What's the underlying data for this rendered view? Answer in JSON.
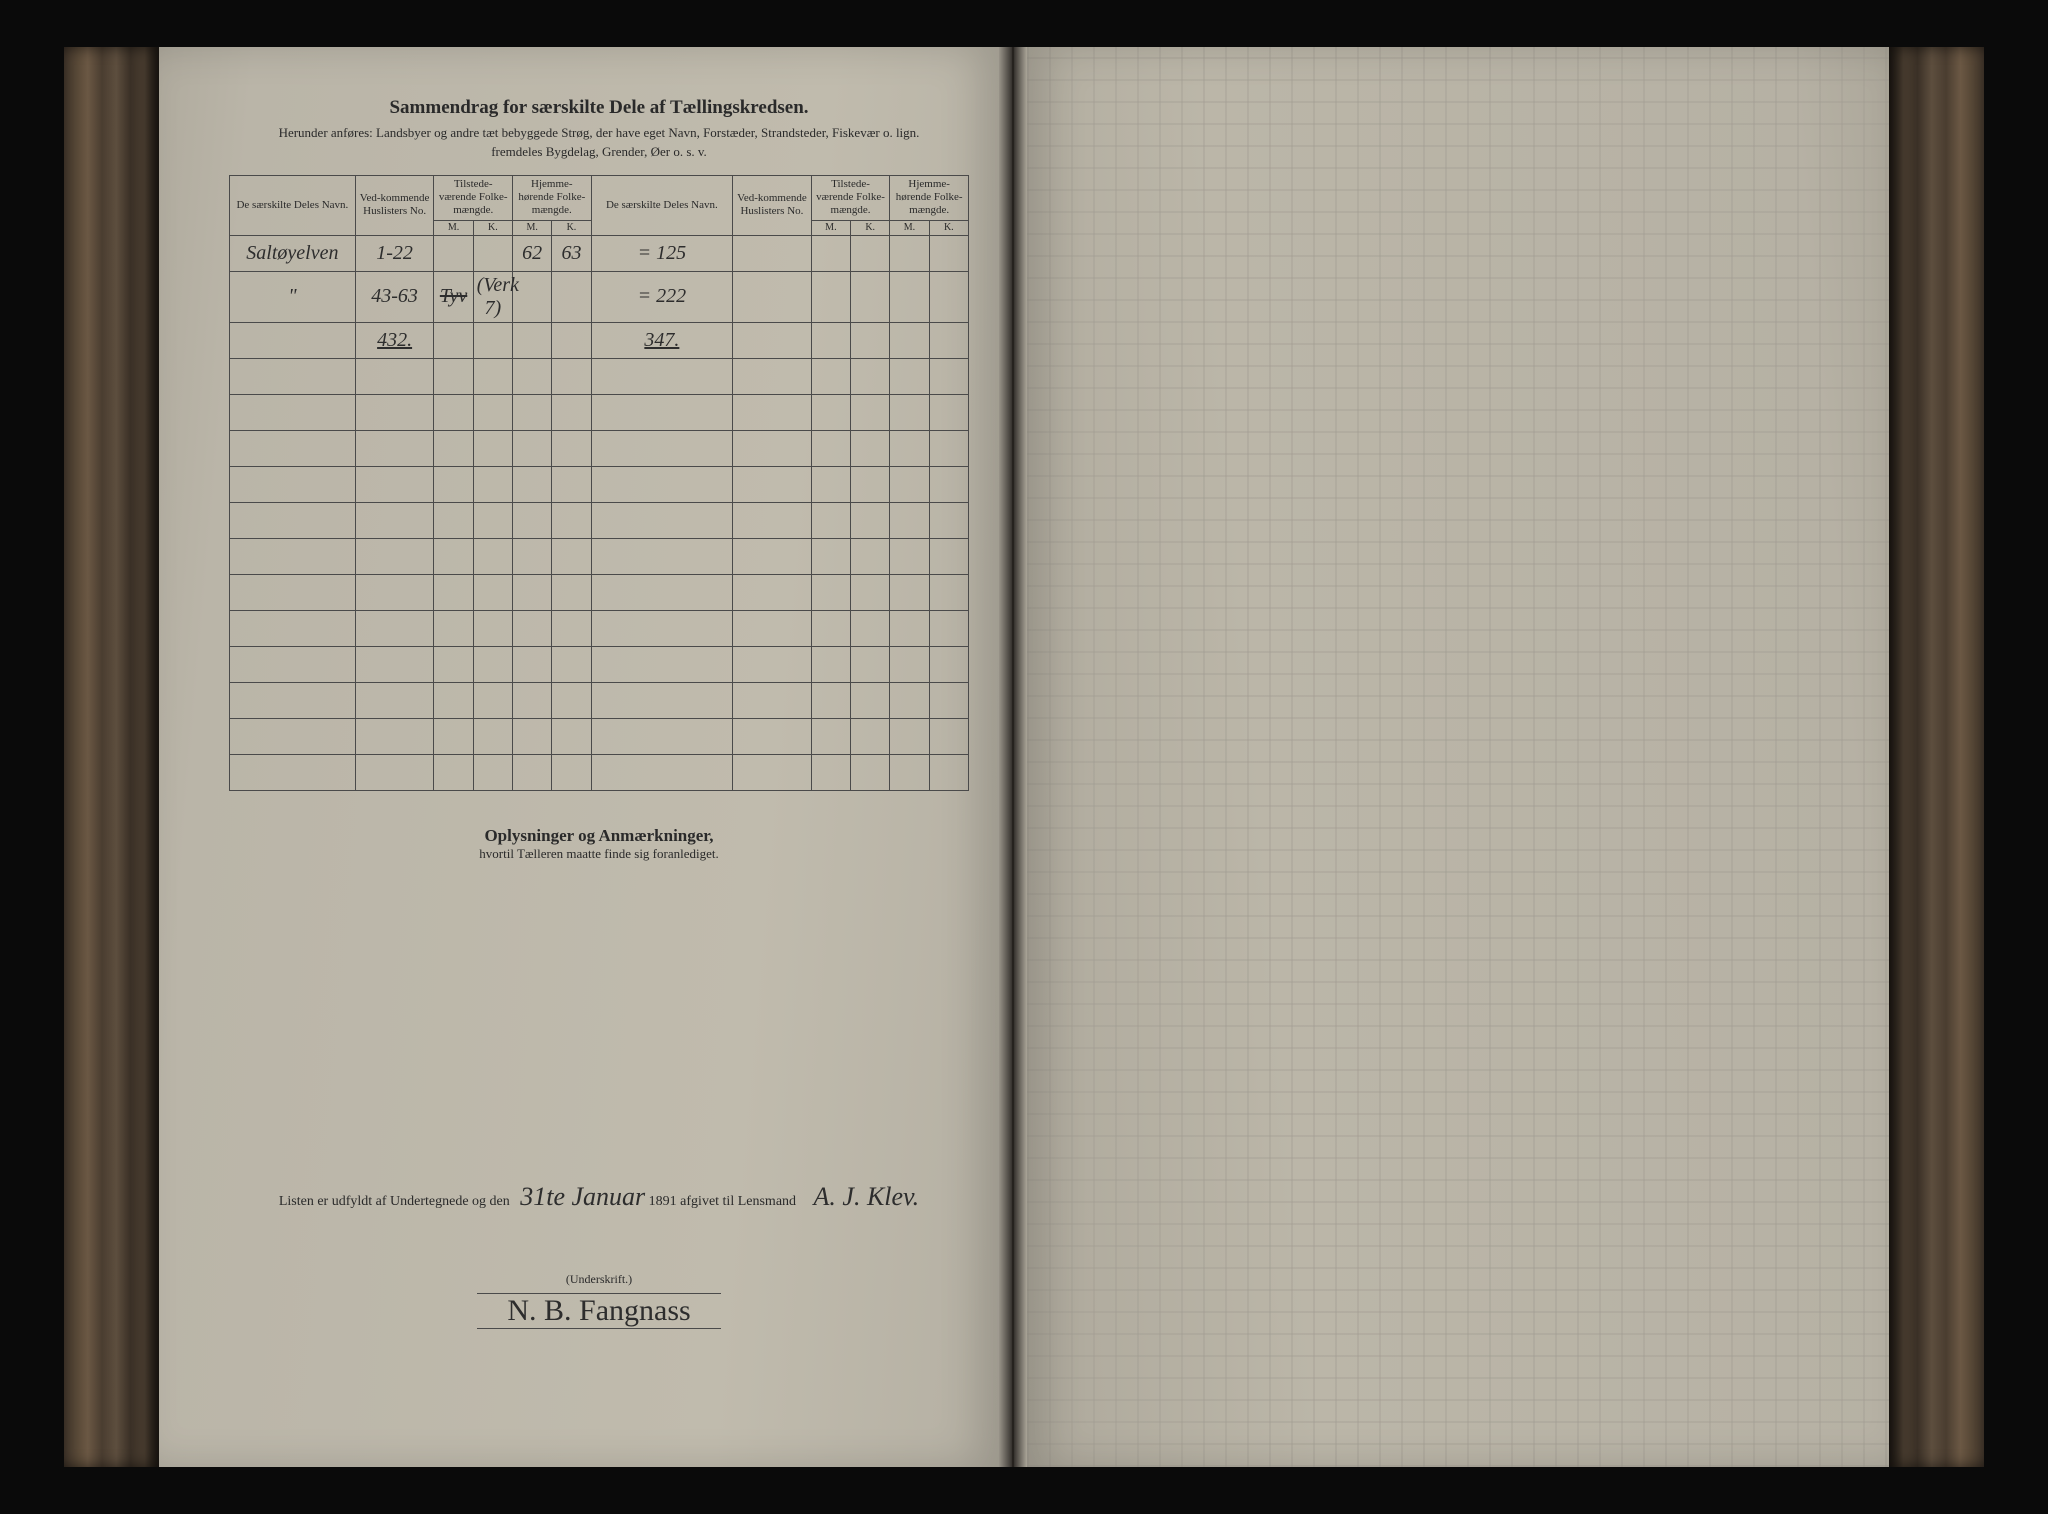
{
  "colors": {
    "page_bg": "#bbb6a8",
    "ink": "#2a2a2a",
    "rule": "#4a4a4a",
    "handwriting": "#2d2d2d",
    "book_edge": "#4a3d30",
    "outer_bg": "#0a0a0a"
  },
  "header": {
    "title": "Sammendrag for særskilte Dele af Tællingskredsen.",
    "sub1": "Herunder anføres: Landsbyer og andre tæt bebyggede Strøg, der have eget Navn, Forstæder, Strandsteder, Fiskevær o. lign.",
    "sub2": "fremdeles Bygdelag, Grender, Øer o. s. v."
  },
  "table": {
    "columns": {
      "name": "De særskilte Deles Navn.",
      "huslister": "Ved-kommende Huslisters No.",
      "tilstede": "Tilstede-værende Folke-mængde.",
      "hjemme": "Hjemme-hørende Folke-mængde.",
      "m": "M.",
      "k": "K."
    },
    "rows": [
      {
        "name": "Saltøyelven",
        "huslister": "1-22",
        "til_m": "",
        "til_k": "",
        "hj_m": "62",
        "hj_k": "63",
        "name2": "= 125"
      },
      {
        "name": "\"",
        "huslister": "43-63",
        "til_m": "Tyv",
        "til_k": "(Verk 7)",
        "hj_m": "",
        "hj_k": "",
        "name2": "= 222"
      },
      {
        "name": "",
        "huslister": "432.",
        "til_m": "",
        "til_k": "",
        "hj_m": "",
        "hj_k": "",
        "name2": "347."
      }
    ],
    "empty_rows": 12
  },
  "remarks": {
    "title": "Oplysninger og Anmærkninger,",
    "sub": "hvortil Tælleren maatte finde sig foranlediget."
  },
  "footer": {
    "prefix": "Listen er udfyldt af Undertegnede og den",
    "date_hand": "31te Januar",
    "year": "1891",
    "suffix": "afgivet til Lensmand",
    "sig_right": "A. J. Klev."
  },
  "signature": {
    "label": "(Underskrift.)",
    "name": "N. B. Fangnass"
  }
}
